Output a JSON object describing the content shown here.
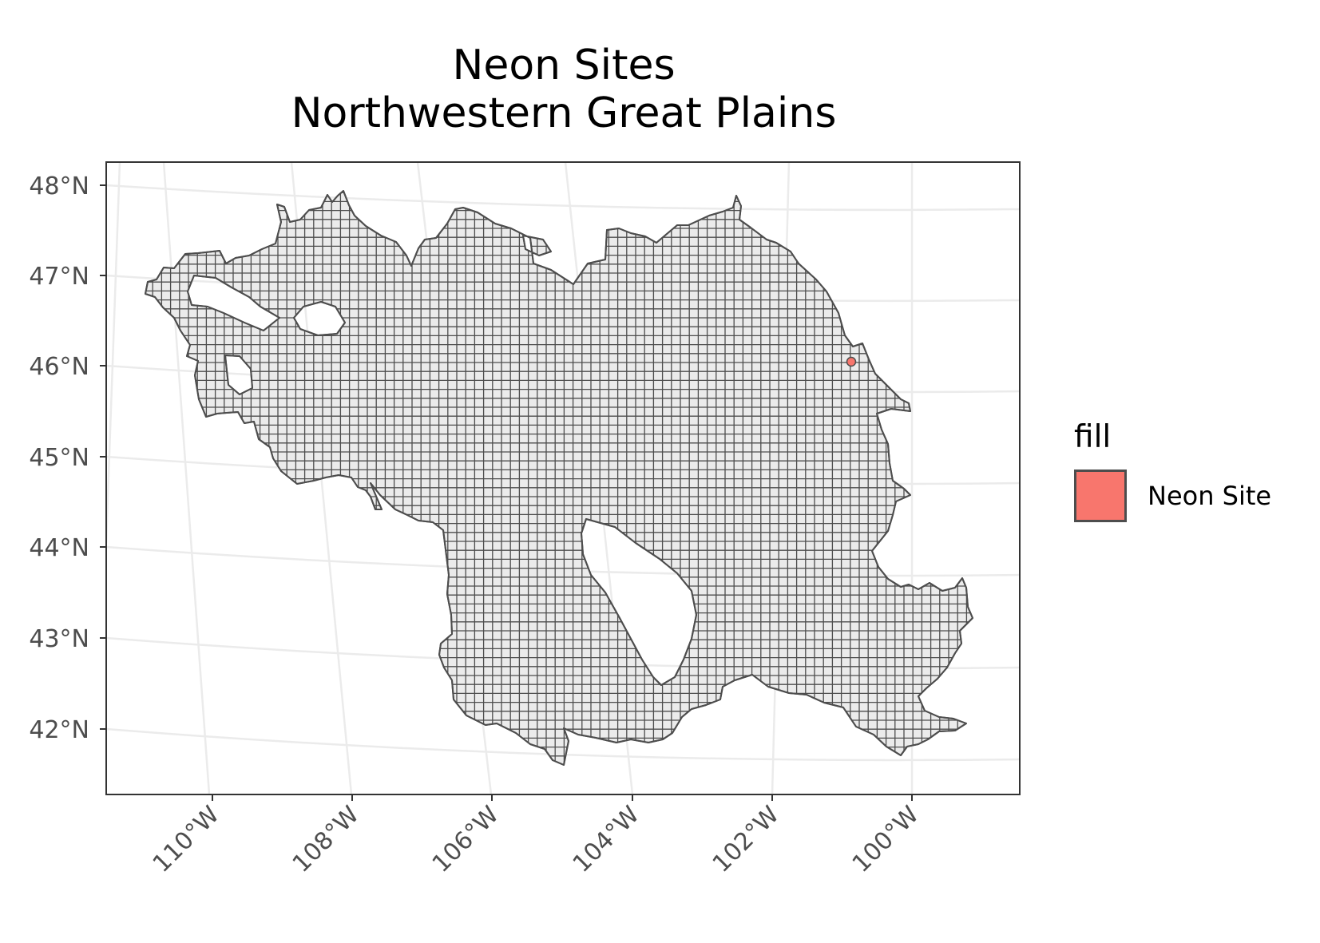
{
  "title_line1": "Neon Sites",
  "title_line2": "Northwestern Great Plains",
  "y_axis": {
    "ticks": [
      "48°N",
      "47°N",
      "46°N",
      "45°N",
      "44°N",
      "43°N",
      "42°N"
    ]
  },
  "x_axis": {
    "ticks": [
      "110°W",
      "108°W",
      "106°W",
      "104°W",
      "102°W",
      "100°W"
    ]
  },
  "legend": {
    "title": "fill",
    "items": [
      {
        "label": "Neon Site",
        "color": "#F8766D"
      }
    ]
  },
  "colors": {
    "region_fill": "#ebebeb",
    "region_stroke": "#4d4d4d",
    "graticule": "#ebebeb",
    "site": "#F8766D"
  },
  "sites": [
    {
      "label": "Neon Site",
      "lon": -100.9,
      "lat": 46.8
    }
  ]
}
